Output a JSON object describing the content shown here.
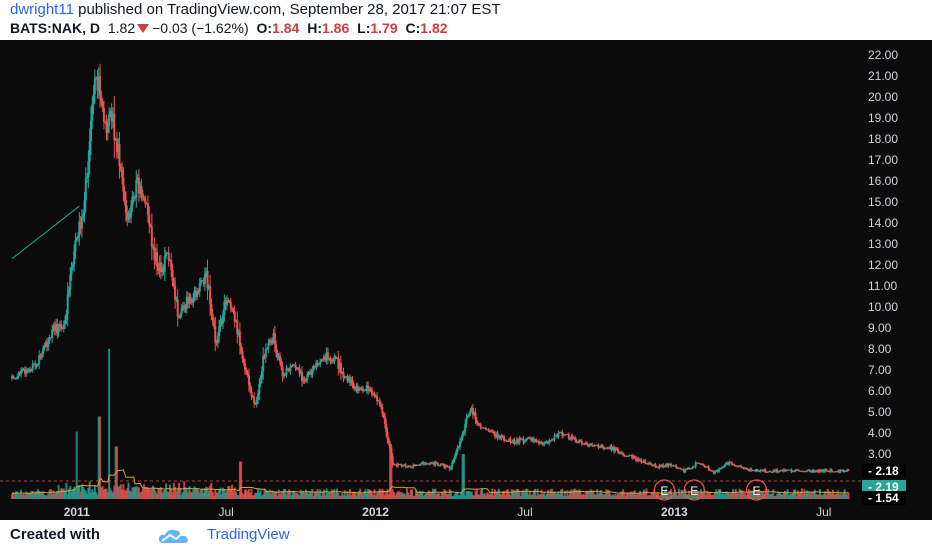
{
  "header": {
    "user": "dwright11",
    "published": " published on TradingView.com, September 28, 2017 21:07 EST",
    "symbol": "BATS:NAK, D",
    "last": "1.82",
    "change": "−0.03 (−1.62%)",
    "o_label": "O:",
    "o": "1.84",
    "h_label": "H:",
    "h": "1.86",
    "l_label": "L:",
    "l": "1.79",
    "c_label": "C:",
    "c": "1.82"
  },
  "footer": {
    "created_with": "Created with",
    "brand": "TradingView"
  },
  "colors": {
    "background": "#0b0b0b",
    "up": "#26a69a",
    "down": "#ef5350",
    "trendline": "#1fa88e",
    "volume_ma": "#e0a030"
  },
  "chart_data": {
    "type": "candlestick",
    "interval": "D",
    "x_tick_labels": [
      "2011",
      "Jul",
      "2012",
      "Jul",
      "2013",
      "Jul"
    ],
    "x_ticks_months_since_start": [
      2.6,
      8.6,
      14.6,
      20.6,
      26.6,
      32.6
    ],
    "y_tick_labels": [
      "22.00",
      "21.00",
      "20.00",
      "19.00",
      "18.00",
      "17.00",
      "16.00",
      "15.00",
      "14.00",
      "13.00",
      "12.00",
      "11.00",
      "10.00",
      "9.00",
      "8.00",
      "7.00",
      "6.00",
      "5.00",
      "4.00",
      "3.00"
    ],
    "ylim": [
      1.2,
      22.6
    ],
    "price_tags": [
      {
        "value": "2.18",
        "color": "#ffffff"
      },
      {
        "value": "2.19",
        "color": "#26a69a"
      },
      {
        "value": "1.54",
        "color": "#ffffff"
      }
    ],
    "close_path": [
      {
        "m": 0.0,
        "p": 6.6
      },
      {
        "m": 1.0,
        "p": 7.3
      },
      {
        "m": 1.6,
        "p": 8.8
      },
      {
        "m": 2.1,
        "p": 9.2
      },
      {
        "m": 2.5,
        "p": 12.6
      },
      {
        "m": 2.8,
        "p": 14.2
      },
      {
        "m": 3.1,
        "p": 17.6
      },
      {
        "m": 3.4,
        "p": 21.2
      },
      {
        "m": 3.7,
        "p": 18.4
      },
      {
        "m": 4.0,
        "p": 19.2
      },
      {
        "m": 4.3,
        "p": 17.2
      },
      {
        "m": 4.6,
        "p": 14.0
      },
      {
        "m": 5.0,
        "p": 15.8
      },
      {
        "m": 5.4,
        "p": 15.0
      },
      {
        "m": 5.7,
        "p": 12.4
      },
      {
        "m": 6.0,
        "p": 11.8
      },
      {
        "m": 6.3,
        "p": 12.5
      },
      {
        "m": 6.7,
        "p": 9.5
      },
      {
        "m": 7.0,
        "p": 10.3
      },
      {
        "m": 7.4,
        "p": 10.6
      },
      {
        "m": 7.8,
        "p": 11.6
      },
      {
        "m": 8.2,
        "p": 8.2
      },
      {
        "m": 8.6,
        "p": 10.4
      },
      {
        "m": 9.0,
        "p": 9.2
      },
      {
        "m": 9.5,
        "p": 6.4
      },
      {
        "m": 9.8,
        "p": 5.2
      },
      {
        "m": 10.1,
        "p": 7.6
      },
      {
        "m": 10.5,
        "p": 8.6
      },
      {
        "m": 10.9,
        "p": 6.6
      },
      {
        "m": 11.3,
        "p": 7.5
      },
      {
        "m": 11.7,
        "p": 6.5
      },
      {
        "m": 12.2,
        "p": 7.2
      },
      {
        "m": 12.6,
        "p": 7.7
      },
      {
        "m": 13.0,
        "p": 7.5
      },
      {
        "m": 13.4,
        "p": 6.6
      },
      {
        "m": 13.8,
        "p": 6.2
      },
      {
        "m": 14.3,
        "p": 6.1
      },
      {
        "m": 14.8,
        "p": 5.5
      },
      {
        "m": 15.1,
        "p": 3.7
      },
      {
        "m": 15.3,
        "p": 2.5
      },
      {
        "m": 16.0,
        "p": 2.4
      },
      {
        "m": 16.6,
        "p": 2.6
      },
      {
        "m": 17.2,
        "p": 2.5
      },
      {
        "m": 17.6,
        "p": 2.3
      },
      {
        "m": 18.0,
        "p": 3.6
      },
      {
        "m": 18.4,
        "p": 5.2
      },
      {
        "m": 18.8,
        "p": 4.3
      },
      {
        "m": 19.4,
        "p": 3.9
      },
      {
        "m": 20.1,
        "p": 3.6
      },
      {
        "m": 20.8,
        "p": 3.7
      },
      {
        "m": 21.4,
        "p": 3.5
      },
      {
        "m": 22.0,
        "p": 4.0
      },
      {
        "m": 22.6,
        "p": 3.7
      },
      {
        "m": 23.3,
        "p": 3.4
      },
      {
        "m": 24.0,
        "p": 3.3
      },
      {
        "m": 24.6,
        "p": 3.0
      },
      {
        "m": 25.2,
        "p": 2.7
      },
      {
        "m": 25.9,
        "p": 2.4
      },
      {
        "m": 26.5,
        "p": 2.5
      },
      {
        "m": 27.0,
        "p": 2.2
      },
      {
        "m": 27.6,
        "p": 2.6
      },
      {
        "m": 28.2,
        "p": 2.1
      },
      {
        "m": 28.8,
        "p": 2.6
      },
      {
        "m": 29.4,
        "p": 2.3
      },
      {
        "m": 30.0,
        "p": 2.2
      }
    ],
    "volume_spikes": [
      {
        "m": 2.6,
        "v": 0.45
      },
      {
        "m": 3.5,
        "v": 0.55
      },
      {
        "m": 3.9,
        "v": 1.0
      },
      {
        "m": 4.2,
        "v": 0.35
      },
      {
        "m": 9.2,
        "v": 0.25
      },
      {
        "m": 15.2,
        "v": 0.35
      },
      {
        "m": 18.1,
        "v": 0.3
      }
    ],
    "earnings_markers": [
      {
        "m": 26.2,
        "label": "E"
      },
      {
        "m": 27.4,
        "label": "E"
      },
      {
        "m": 29.9,
        "label": "E"
      }
    ],
    "trendline": {
      "from": {
        "m": 0.0,
        "p": 12.3
      },
      "to": {
        "m": 2.7,
        "p": 14.8
      }
    }
  }
}
